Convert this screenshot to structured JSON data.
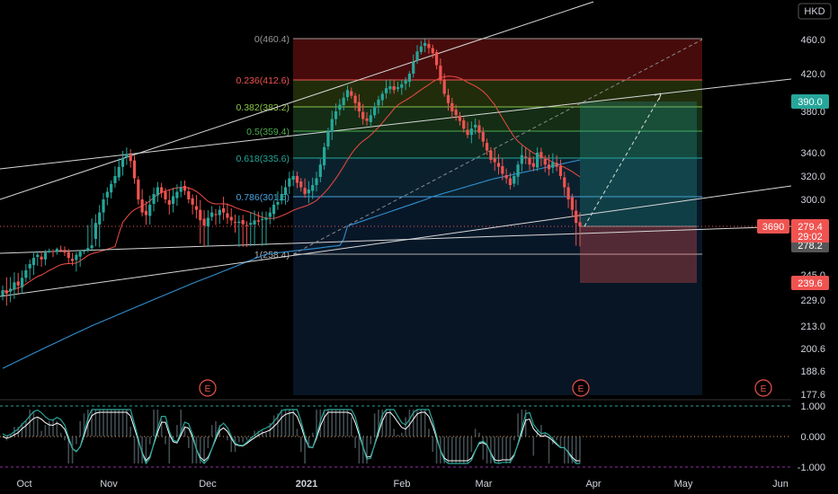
{
  "currency_label": "HKD",
  "symbol_tag": "3690",
  "countdown": "29:02",
  "earnings_marker": "E",
  "colors": {
    "background": "#000000",
    "up": "#26a69a",
    "down": "#ef5350",
    "ma_red": "#e0473f",
    "ma_blue": "#2f8fd0",
    "trendline": "#d8d8d8",
    "oscillator": "#26a69a"
  },
  "chart_data": {
    "type": "candlestick",
    "price_axis_ticks": [
      "460.0",
      "420.0",
      "380.0",
      "340.0",
      "320.0",
      "300.0",
      "245.0",
      "229.0",
      "213.0",
      "200.6",
      "188.6",
      "177.6"
    ],
    "time_axis_labels": [
      "Oct",
      "Nov",
      "Dec",
      "2021",
      "Feb",
      "Mar",
      "Apr",
      "May",
      "Jun"
    ],
    "price_tags": [
      {
        "label": "390.0",
        "price": 390.0,
        "kind": "target"
      },
      {
        "label": "279.4",
        "price": 279.4,
        "kind": "last"
      },
      {
        "label": "278.2",
        "price": 278.2,
        "kind": "prev"
      },
      {
        "label": "239.6",
        "price": 239.6,
        "kind": "stop"
      }
    ],
    "fibonacci": [
      {
        "label": "0(460.4)",
        "level": 0,
        "price": 460.4
      },
      {
        "label": "0.236(412.6)",
        "level": 0.236,
        "price": 412.6
      },
      {
        "label": "0.382(383.2)",
        "level": 0.382,
        "price": 383.2
      },
      {
        "label": "0.5(359.4)",
        "level": 0.5,
        "price": 359.4
      },
      {
        "label": "0.618(335.6)",
        "level": 0.618,
        "price": 335.6
      },
      {
        "label": "0.786(301.6)",
        "level": 0.786,
        "price": 301.6
      },
      {
        "label": "1(258.4)",
        "level": 1,
        "price": 258.4
      }
    ],
    "position": {
      "entry": 279.4,
      "target": 390.0,
      "stop": 239.6
    },
    "oscillator_ticks": [
      "1.000",
      "0.000",
      "-1.000"
    ],
    "series": [
      {
        "kind": "candles",
        "closes": [
          235,
          233,
          236,
          240,
          238,
          243,
          248,
          252,
          256,
          258,
          255,
          262,
          266,
          264,
          270,
          268,
          262,
          256,
          254,
          258,
          264,
          266,
          272,
          278,
          282,
          290,
          300,
          306,
          313,
          320,
          328,
          335,
          339,
          333,
          318,
          300,
          290,
          288,
          296,
          304,
          310,
          305,
          300,
          296,
          302,
          306,
          310,
          307,
          300,
          296,
          292,
          284,
          280,
          286,
          290,
          288,
          292,
          290,
          286,
          284,
          282,
          283,
          281,
          280,
          282,
          284,
          283,
          285,
          286,
          290,
          296,
          298,
          304,
          310,
          318,
          320,
          314,
          310,
          304,
          308,
          312,
          318,
          330,
          345,
          360,
          372,
          380,
          386,
          394,
          402,
          396,
          388,
          380,
          372,
          370,
          376,
          384,
          392,
          398,
          404,
          406,
          402,
          405,
          408,
          412,
          420,
          434,
          446,
          452,
          456,
          450,
          444,
          430,
          412,
          398,
          388,
          380,
          376,
          370,
          362,
          356,
          362,
          366,
          358,
          350,
          342,
          334,
          332,
          328,
          322,
          318,
          312,
          320,
          330,
          338,
          336,
          330,
          328,
          340,
          336,
          330,
          326,
          332,
          328,
          320,
          310,
          300,
          292,
          282,
          279.4
        ]
      }
    ]
  }
}
